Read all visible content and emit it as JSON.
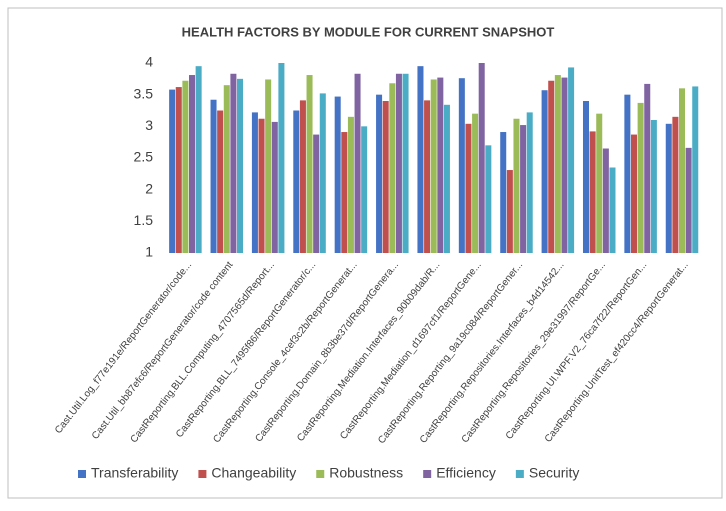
{
  "chart_data": {
    "type": "bar",
    "title": "HEALTH FACTORS BY MODULE FOR CURRENT SNAPSHOT",
    "categories": [
      "Cast.Util.Log_f77e191e/ReportGenerator/code...",
      "Cast.Util_bb87efc6/ReportGenerator/code content",
      "CastReporting.BLL.Computing_4707565d/Report...",
      "CastReporting.BLL_7495f86/ReportGenerator/c...",
      "CastReporting.Console_4cef3c2b/ReportGenerat...",
      "CastReporting.Domain_8b3be37d/ReportGenera...",
      "CastReporting.Mediation.Interfaces_90b09dab/R...",
      "CastReporting.Mediation_d1697cf1/ReportGene...",
      "CastReporting.Reporting_9a19c084/ReportGener...",
      "CastReporting.Repositories.Interfaces_b4d14542...",
      "CastReporting.Repositories_29e31997/ReportGe...",
      "CastReporting.UI.WPF.V2_76ca7f22/ReportGen...",
      "CastReporting.UnitTest_ef420cc4/ReportGenerat..."
    ],
    "series": [
      {
        "name": "Transferability",
        "color": "#4472c4",
        "values": [
          3.58,
          3.42,
          3.22,
          3.25,
          3.47,
          3.5,
          3.95,
          3.76,
          2.91,
          3.57,
          3.4,
          3.5,
          3.04
        ]
      },
      {
        "name": "Changeability",
        "color": "#c0504d",
        "values": [
          3.62,
          3.25,
          3.12,
          3.41,
          2.91,
          3.4,
          3.41,
          3.04,
          2.31,
          3.72,
          2.92,
          2.87,
          3.15
        ]
      },
      {
        "name": "Robustness",
        "color": "#9bbb59",
        "values": [
          3.72,
          3.65,
          3.74,
          3.81,
          3.15,
          3.68,
          3.74,
          3.2,
          3.12,
          3.81,
          3.2,
          3.37,
          3.6
        ]
      },
      {
        "name": "Efficiency",
        "color": "#8064a2",
        "values": [
          3.81,
          3.83,
          3.07,
          2.87,
          3.83,
          3.83,
          3.77,
          4.0,
          3.02,
          3.77,
          2.65,
          3.67,
          2.66
        ]
      },
      {
        "name": "Security",
        "color": "#4bacc6",
        "values": [
          3.95,
          3.75,
          4.0,
          3.52,
          3.0,
          3.83,
          3.34,
          2.7,
          3.22,
          3.93,
          2.35,
          3.1,
          3.63
        ]
      }
    ],
    "ylim": [
      1,
      4
    ],
    "yticks": [
      1,
      1.5,
      2,
      2.5,
      3,
      3.5,
      4
    ],
    "grid": false,
    "legend": "bottom"
  }
}
